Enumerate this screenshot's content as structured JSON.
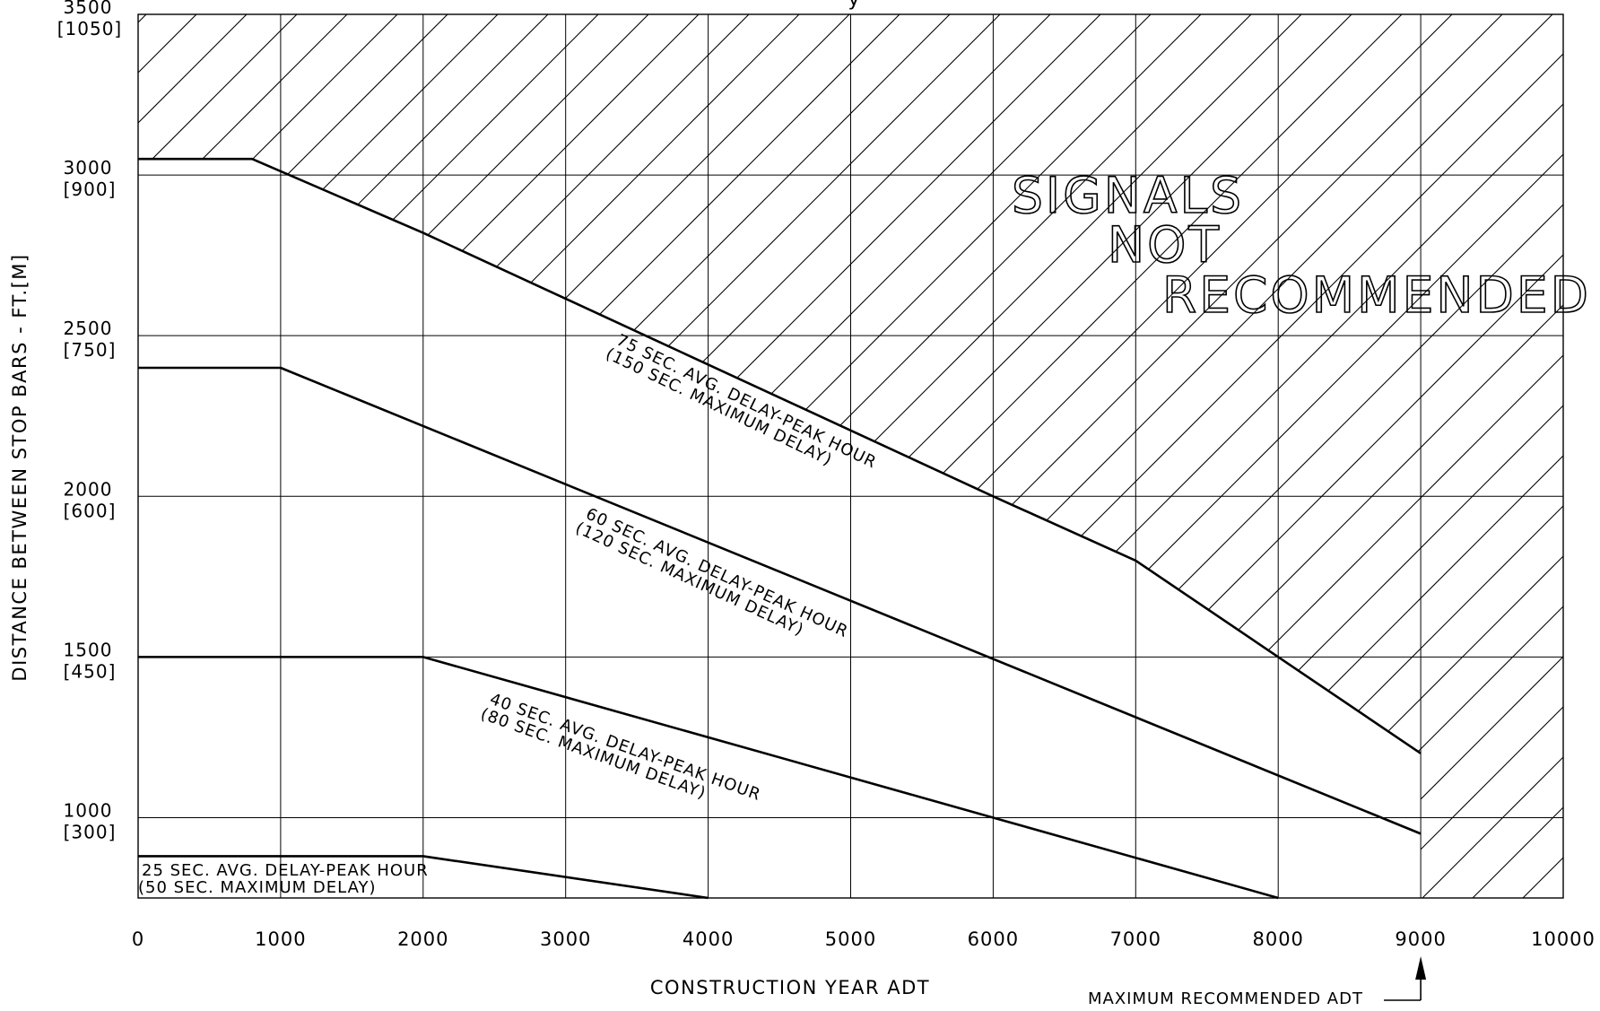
{
  "chart_data": {
    "type": "line",
    "title_partial": "y",
    "xlabel": "CONSTRUCTION YEAR ADT",
    "ylabel": "DISTANCE BETWEEN STOP BARS - FT.[M]",
    "xlim": [
      0,
      10000
    ],
    "ylim": [
      750,
      3500
    ],
    "x_ticks": [
      "0",
      "1000",
      "2000",
      "3000",
      "4000",
      "5000",
      "6000",
      "7000",
      "8000",
      "9000",
      "10000"
    ],
    "y_ticks": [
      {
        "value": 3500,
        "ft": "3500",
        "m": "[1050]"
      },
      {
        "value": 3000,
        "ft": "3000",
        "m": "[900]"
      },
      {
        "value": 2500,
        "ft": "2500",
        "m": "[750]"
      },
      {
        "value": 2000,
        "ft": "2000",
        "m": "[600]"
      },
      {
        "value": 1500,
        "ft": "1500",
        "m": "[450]"
      },
      {
        "value": 1000,
        "ft": "1000",
        "m": "[300]"
      }
    ],
    "grid": true,
    "series": [
      {
        "line1": "75 SEC. AVG. DELAY-PEAK HOUR",
        "line2": "(150 SEC. MAXIMUM DELAY)",
        "points": [
          [
            0,
            3050
          ],
          [
            800,
            3050
          ],
          [
            2000,
            2820
          ],
          [
            6000,
            2000
          ],
          [
            7000,
            1800
          ],
          [
            9000,
            1200
          ]
        ]
      },
      {
        "line1": "60 SEC. AVG. DELAY-PEAK HOUR",
        "line2": "(120 SEC. MAXIMUM DELAY)",
        "points": [
          [
            0,
            2400
          ],
          [
            1000,
            2400
          ],
          [
            9000,
            950
          ]
        ]
      },
      {
        "line1": "40 SEC. AVG. DELAY-PEAK HOUR",
        "line2": "(80 SEC. MAXIMUM DELAY)",
        "points": [
          [
            0,
            1500
          ],
          [
            2000,
            1500
          ],
          [
            6000,
            1000
          ],
          [
            8000,
            750
          ]
        ]
      },
      {
        "line1": "25 SEC. AVG. DELAY-PEAK HOUR",
        "line2": "(50 SEC. MAXIMUM DELAY)",
        "points": [
          [
            0,
            880
          ],
          [
            2000,
            880
          ],
          [
            4000,
            750
          ]
        ]
      }
    ],
    "region_label": [
      "SIGNALS",
      "NOT",
      "RECOMMENDED"
    ],
    "max_adt": {
      "value": 9000,
      "label": "MAXIMUM RECOMMENDED ADT"
    }
  }
}
